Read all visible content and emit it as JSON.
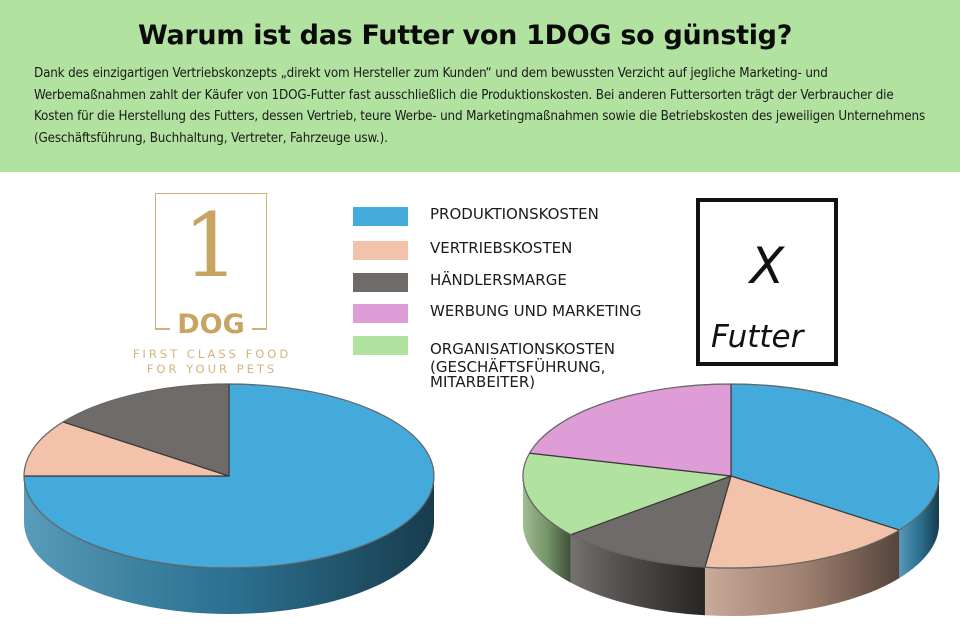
{
  "header": {
    "title": "Warum ist das Futter von 1DOG so günstig?",
    "intro": "Dank des einzigartigen Vertriebskonzepts „direkt vom Hersteller zum Kunden“ und dem bewussten Verzicht auf jegliche Marketing- und Werbemaßnahmen zahlt der Käufer von 1DOG-Futter fast ausschließlich die Produktionskosten. Bei anderen Futtersorten trägt der Verbraucher die Kosten für die Herstellung des Futters, dessen Vertrieb, teure Werbe- und Marketingmaßnahmen sowie die Betriebskosten des jeweiligen Unternehmens (Geschäftsführung, Buchhaltung, Vertreter, Fahrzeuge usw.).",
    "background": "#b2e2a0"
  },
  "logo": {
    "numeral": "1",
    "brand": "DOG",
    "tagline_line1": "FIRST CLASS FOOD",
    "tagline_line2": "FOR YOUR PETS",
    "color": "#c8a462"
  },
  "competitor_label": {
    "letter": "X",
    "word": "Futter"
  },
  "legend": {
    "items": [
      {
        "label": "PRODUKTIONSKOSTEN",
        "color": "#43aadb"
      },
      {
        "label": "VERTRIEBSKOSTEN",
        "color": "#f2c3aa"
      },
      {
        "label": "HÄNDLERSMARGE",
        "color": "#6f6b68"
      },
      {
        "label": "WERBUNG UND MARKETING",
        "color": "#df9dd8"
      },
      {
        "label": "ORGANISATIONSKOSTEN (GESCHÄFTSFÜHRUNG, MITARBEITER)",
        "label_lines": [
          "ORGANISATIONSKOSTEN",
          "(GESCHÄFTSFÜHRUNG,",
          "MITARBEITER)"
        ],
        "color": "#b2e2a0"
      }
    ]
  },
  "chart_data": [
    {
      "type": "pie",
      "title": "1DOG",
      "style": "3d",
      "start_angle_deg": 0,
      "direction": "clockwise",
      "categories": [
        "PRODUKTIONSKOSTEN",
        "VERTRIEBSKOSTEN",
        "HÄNDLERSMARGE"
      ],
      "values": [
        75,
        10,
        15
      ],
      "colors": [
        "#43aadb",
        "#f2c3aa",
        "#6f6b68"
      ],
      "legend_position": "center-top"
    },
    {
      "type": "pie",
      "title": "X Futter",
      "style": "3d",
      "start_angle_deg": 0,
      "direction": "clockwise",
      "categories": [
        "PRODUKTIONSKOSTEN",
        "VERTRIEBSKOSTEN",
        "HÄNDLERSMARGE",
        "ORGANISATIONSKOSTEN (GESCHÄFTSFÜHRUNG, MITARBEITER)",
        "WERBUNG UND MARKETING"
      ],
      "values": [
        35,
        17,
        12,
        15,
        21
      ],
      "colors": [
        "#43aadb",
        "#f2c3aa",
        "#6f6b68",
        "#b2e2a0",
        "#df9dd8"
      ],
      "legend_position": "center-top"
    }
  ]
}
